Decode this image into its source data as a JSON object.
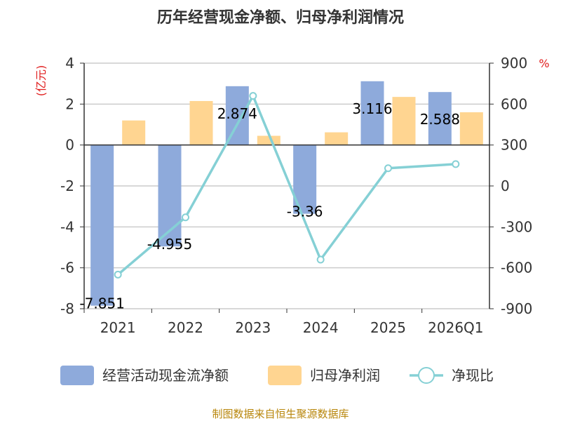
{
  "chart_data": {
    "type": "bar",
    "title": "历年经营现金净额、归母净利润情况",
    "categories": [
      "2021",
      "2022",
      "2023",
      "2024",
      "2025",
      "2026Q1"
    ],
    "series": [
      {
        "name": "经营活动现金流净额",
        "kind": "bar",
        "axis": "left",
        "color": "#8eaadb",
        "values": [
          -7.851,
          -4.955,
          2.874,
          -3.36,
          3.116,
          2.588
        ]
      },
      {
        "name": "归母净利润",
        "kind": "bar",
        "axis": "left",
        "color": "#ffd591",
        "values": [
          1.2,
          2.15,
          0.45,
          0.62,
          2.35,
          1.6
        ]
      },
      {
        "name": "净现比",
        "kind": "line",
        "axis": "right",
        "color": "#85d0d5",
        "values": [
          -650,
          -230,
          660,
          -540,
          130,
          160
        ]
      }
    ],
    "data_labels": [
      "-7.851",
      "-4.955",
      "2.874",
      "-3.36",
      "3.116",
      "2.588"
    ],
    "y_left": {
      "label": "(亿元)",
      "range": [
        -8,
        4
      ],
      "ticks": [
        -8,
        -6,
        -4,
        -2,
        0,
        2,
        4
      ]
    },
    "y_right": {
      "label": "%",
      "range": [
        -900,
        900
      ],
      "ticks": [
        -900,
        -600,
        -300,
        0,
        300,
        600,
        900
      ]
    },
    "grid": true,
    "legend_position": "bottom"
  },
  "source_note": "制图数据来自恒生聚源数据库"
}
